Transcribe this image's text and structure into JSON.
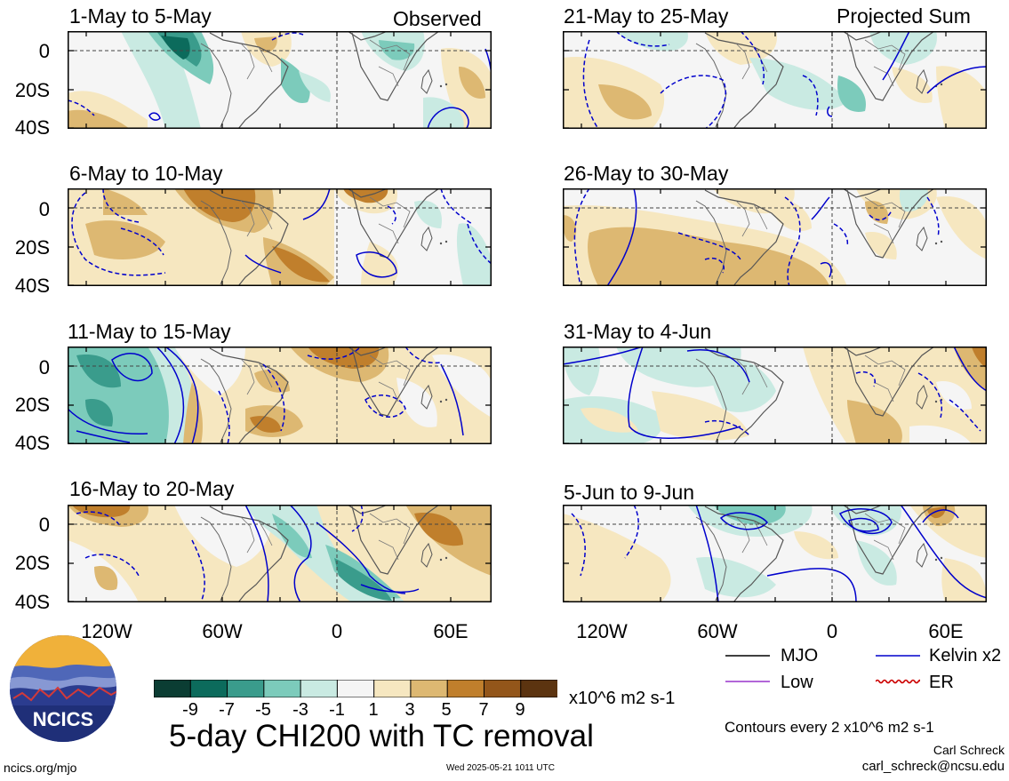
{
  "header": {
    "left_label": "Observed",
    "right_label": "Projected Sum"
  },
  "panels": {
    "left": [
      {
        "date_range": "1-May to 5-May"
      },
      {
        "date_range": "6-May to 10-May"
      },
      {
        "date_range": "11-May to 15-May"
      },
      {
        "date_range": "16-May to 20-May"
      }
    ],
    "right": [
      {
        "date_range": "21-May to 25-May"
      },
      {
        "date_range": "26-May to 30-May"
      },
      {
        "date_range": "31-May to 4-Jun"
      },
      {
        "date_range": "5-Jun to 9-Jun"
      }
    ]
  },
  "axes": {
    "lat_labels": [
      "0",
      "20S",
      "40S"
    ],
    "lon_labels": [
      "120W",
      "60W",
      "0",
      "60E"
    ]
  },
  "colorbar": {
    "ticks": [
      "-9",
      "-7",
      "-5",
      "-3",
      "-1",
      "1",
      "3",
      "5",
      "7",
      "9"
    ],
    "unit": "x10^6 m2 s-1",
    "colors": [
      "#0b3d33",
      "#0c6b5c",
      "#3a9c8c",
      "#7ccbbb",
      "#c9eae2",
      "#f5f5f5",
      "#f6e7c0",
      "#ddb872",
      "#c07f2c",
      "#93561a",
      "#5c3410"
    ]
  },
  "legend": {
    "items": [
      {
        "label": "MJO",
        "color": "#000000",
        "style": "solid"
      },
      {
        "label": "Kelvin x2",
        "color": "#0000cc",
        "style": "solid"
      },
      {
        "label": "Low",
        "color": "#9933cc",
        "style": "solid"
      },
      {
        "label": "ER",
        "color": "#cc0000",
        "style": "wavy"
      }
    ],
    "contour_note": "Contours every 2 x10^6 m2 s-1"
  },
  "footer": {
    "title": "5-day CHI200 with TC removal",
    "url": "ncics.org/mjo",
    "timestamp": "Wed 2025-05-21 1011 UTC",
    "author": "Carl Schreck",
    "email": "carl_schreck@ncsu.edu",
    "logo_text": "NCICS"
  }
}
